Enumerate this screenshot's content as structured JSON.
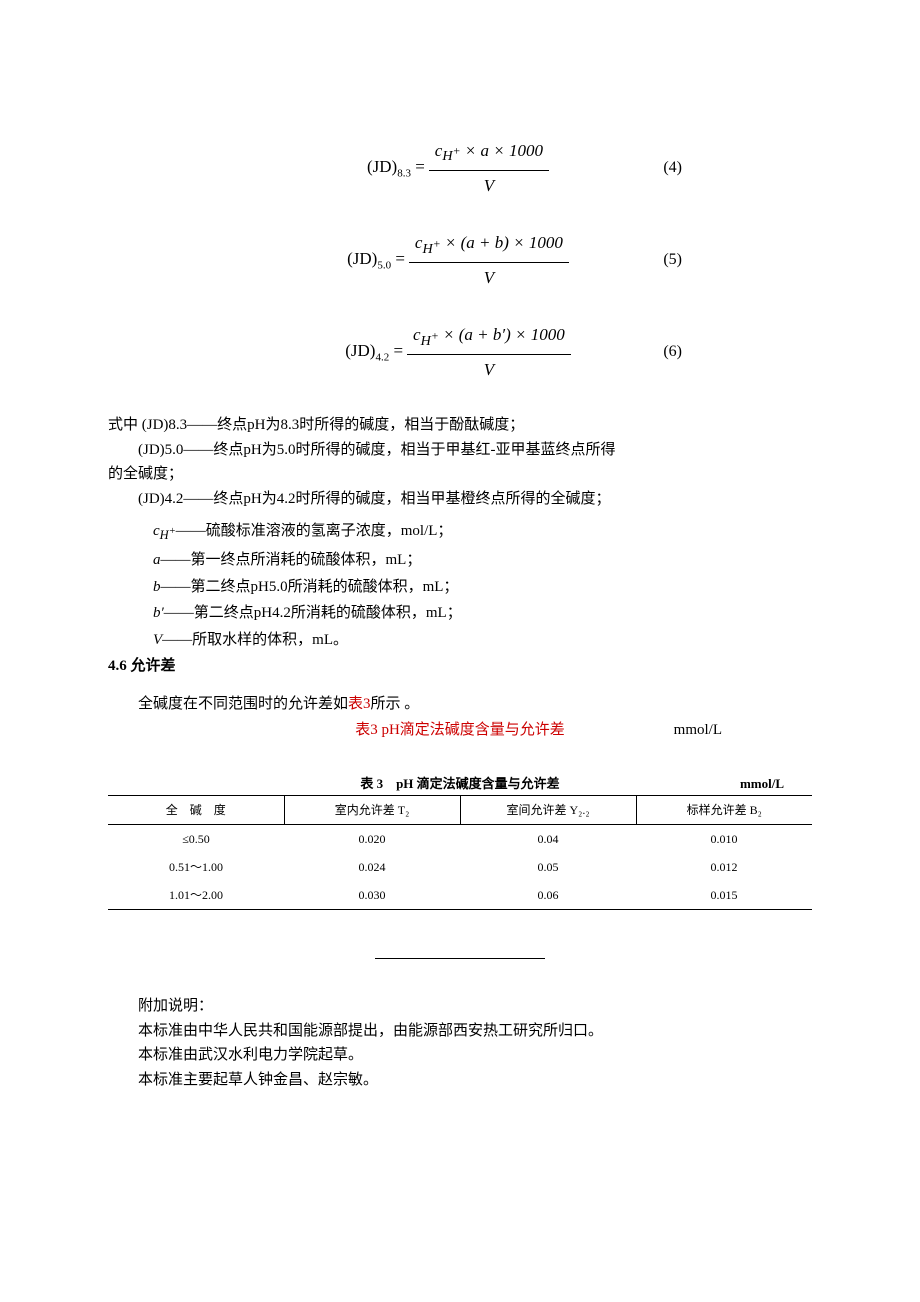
{
  "formulas": [
    {
      "lhs_prefix": "(JD)",
      "lhs_sub": "8.3",
      "num": "c<sub>H<sup>+</sup></sub> × a × 1000",
      "den": "V",
      "eqnum": "(4)"
    },
    {
      "lhs_prefix": "(JD)",
      "lhs_sub": "5.0",
      "num": "c<sub>H<sup>+</sup></sub> × (a + b) × 1000",
      "den": "V",
      "eqnum": "(5)"
    },
    {
      "lhs_prefix": "(JD)",
      "lhs_sub": "4.2",
      "num": "c<sub>H<sup>+</sup></sub> × (a + b′) × 1000",
      "den": "V",
      "eqnum": "(6)"
    }
  ],
  "where_intro": "式中 (JD)8.3——终点pH为8.3时所得的碱度，相当于酚酞碱度；",
  "where_lines": [
    "(JD)5.0——终点pH为5.0时所得的碱度，相当于甲基红-亚甲基蓝终点所得",
    "的全碱度；",
    "(JD)4.2——终点pH为4.2时所得的碱度，相当甲基橙终点所得的全碱度；"
  ],
  "var_defs": [
    {
      "sym": "c<sub>H<sup>+</sup></sub>",
      "desc": "——硫酸标准溶液的氢离子浓度，mol/L；"
    },
    {
      "sym": "a",
      "desc": "——第一终点所消耗的硫酸体积，mL；"
    },
    {
      "sym": "b",
      "desc": "——第二终点pH5.0所消耗的硫酸体积，mL；"
    },
    {
      "sym": "b′",
      "desc": "——第二终点pH4.2所消耗的硫酸体积，mL；"
    },
    {
      "sym": "V",
      "desc": "——所取水样的体积，mL。"
    }
  ],
  "section46_head": "4.6 允许差",
  "section46_body": "全碱度在不同范围时的允许差如",
  "section46_tblref": "表3",
  "section46_body2": "所示 。",
  "table_caption_red": "表3 pH滴定法碱度含量与允许差",
  "table_caption_unit_red": "mmol/L",
  "table_caption_inner": "表 3　pH 滴定法碱度含量与允许差",
  "table_caption_inner_unit": "mmol/L",
  "table": {
    "columns": [
      "全　碱　度",
      "室内允许差 T₂",
      "室间允许差 Y₂.₂",
      "标样允许差 B₂"
    ],
    "rows": [
      [
        "≤0.50",
        "0.020",
        "0.04",
        "0.010"
      ],
      [
        "0.51～1.00",
        "0.024",
        "0.05",
        "0.012"
      ],
      [
        "1.01～2.00",
        "0.030",
        "0.06",
        "0.015"
      ]
    ],
    "col_widths": [
      "25%",
      "25%",
      "25%",
      "25%"
    ]
  },
  "appendix_head": "附加说明：",
  "appendix_lines": [
    "本标准由中华人民共和国能源部提出，由能源部西安热工研究所归口。",
    "本标准由武汉水利电力学院起草。",
    "本标准主要起草人钟金昌、赵宗敏。"
  ]
}
